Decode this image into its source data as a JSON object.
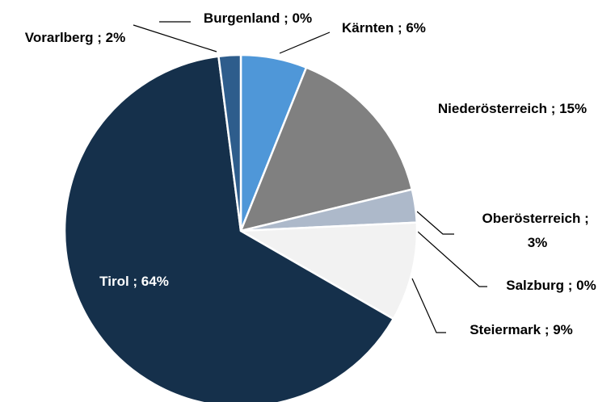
{
  "chart_data": {
    "type": "pie",
    "categories": [
      "Burgenland",
      "Kärnten",
      "Niederösterreich",
      "Oberösterreich",
      "Salzburg",
      "Steiermark",
      "Tirol",
      "Vorarlberg"
    ],
    "values": [
      0,
      6,
      15,
      3,
      0,
      9,
      64,
      2
    ],
    "value_labels": [
      "0%",
      "6%",
      "15%",
      "3%",
      "0%",
      "9%",
      "64%",
      "2%"
    ],
    "label_separator": " ; ",
    "colors": [
      "#7f6000",
      "#4f97d8",
      "#808080",
      "#adb9ca",
      "#c00000",
      "#f2f2f2",
      "#15304b",
      "#2e5d8c"
    ]
  }
}
